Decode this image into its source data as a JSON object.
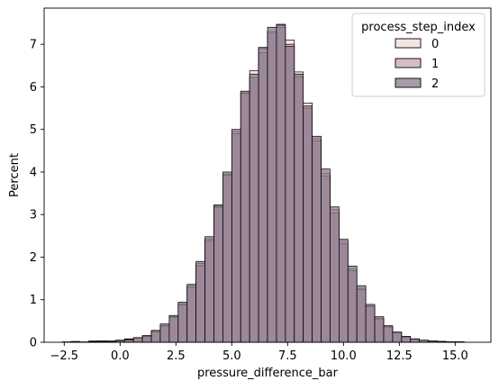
{
  "chart_data": {
    "type": "bar",
    "title": "",
    "xlabel": "pressure_difference_bar",
    "ylabel": "Percent",
    "xlim": [
      -3.4,
      16.6
    ],
    "ylim": [
      0,
      7.85
    ],
    "xticks": [
      -2.5,
      0.0,
      2.5,
      5.0,
      7.5,
      10.0,
      12.5,
      15.0
    ],
    "xtick_labels": [
      "−2.5",
      "0.0",
      "2.5",
      "5.0",
      "7.5",
      "10.0",
      "12.5",
      "15.0"
    ],
    "yticks": [
      0,
      1,
      2,
      3,
      4,
      5,
      6,
      7
    ],
    "ytick_labels": [
      "0",
      "1",
      "2",
      "3",
      "4",
      "5",
      "6",
      "7"
    ],
    "bin_edges": [
      -2.6,
      -2.2,
      -1.8,
      -1.4,
      -1.0,
      -0.6,
      -0.2,
      0.2,
      0.6,
      1.0,
      1.4,
      1.8,
      2.2,
      2.6,
      3.0,
      3.4,
      3.8,
      4.2,
      4.6,
      5.0,
      5.4,
      5.8,
      6.2,
      6.6,
      7.0,
      7.4,
      7.8,
      8.2,
      8.6,
      9.0,
      9.4,
      9.8,
      10.2,
      10.6,
      11.0,
      11.4,
      11.8,
      12.2,
      12.6,
      13.0,
      13.4,
      13.8,
      14.2,
      14.6,
      15.0,
      15.4,
      15.8
    ],
    "legend": {
      "title": "process_step_index",
      "placement": "top-right"
    },
    "series": [
      {
        "name": "0",
        "color": "#f0dcd6",
        "values": [
          0.01,
          0.02,
          0.01,
          0.03,
          0.03,
          0.03,
          0.05,
          0.08,
          0.1,
          0.14,
          0.26,
          0.4,
          0.6,
          0.91,
          1.33,
          1.85,
          2.43,
          3.23,
          3.95,
          4.95,
          5.86,
          6.38,
          6.93,
          7.27,
          7.47,
          7.1,
          6.35,
          5.62,
          4.78,
          3.96,
          3.11,
          2.38,
          1.72,
          1.27,
          0.86,
          0.57,
          0.37,
          0.23,
          0.13,
          0.08,
          0.04,
          0.03,
          0.02,
          0.01,
          0.01,
          0.0
        ]
      },
      {
        "name": "1",
        "color": "#c9a4b4",
        "values": [
          0.0,
          0.01,
          0.0,
          0.02,
          0.03,
          0.02,
          0.04,
          0.07,
          0.1,
          0.13,
          0.24,
          0.38,
          0.58,
          0.88,
          1.29,
          1.8,
          2.39,
          3.17,
          3.92,
          4.9,
          5.85,
          6.22,
          6.8,
          7.3,
          7.4,
          7.0,
          6.24,
          5.5,
          4.73,
          3.9,
          3.04,
          2.32,
          1.68,
          1.24,
          0.84,
          0.55,
          0.36,
          0.22,
          0.12,
          0.07,
          0.04,
          0.02,
          0.01,
          0.01,
          0.0,
          0.0
        ]
      },
      {
        "name": "2",
        "color": "#8a7a8c",
        "values": [
          0.0,
          0.0,
          0.0,
          0.01,
          0.02,
          0.02,
          0.04,
          0.06,
          0.11,
          0.16,
          0.28,
          0.43,
          0.63,
          0.94,
          1.36,
          1.9,
          2.48,
          3.2,
          4.0,
          5.0,
          5.9,
          6.3,
          6.9,
          7.4,
          7.45,
          6.95,
          6.3,
          5.55,
          4.84,
          4.07,
          3.18,
          2.42,
          1.79,
          1.33,
          0.89,
          0.6,
          0.39,
          0.24,
          0.14,
          0.08,
          0.05,
          0.03,
          0.02,
          0.01,
          0.01,
          0.0
        ]
      }
    ]
  }
}
